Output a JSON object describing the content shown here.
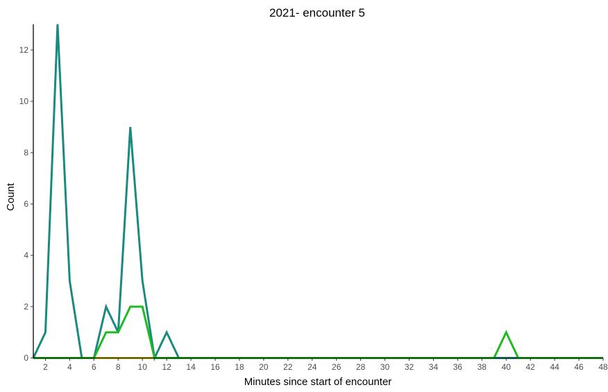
{
  "chart_data": {
    "type": "line",
    "title": "2021- encounter 5",
    "xlabel": "Minutes since start of encounter",
    "ylabel": "Count",
    "xlim": [
      1,
      48
    ],
    "ylim": [
      0,
      13
    ],
    "xticks": [
      2,
      4,
      6,
      8,
      10,
      12,
      14,
      16,
      18,
      20,
      22,
      24,
      26,
      28,
      30,
      32,
      34,
      36,
      38,
      40,
      42,
      44,
      46,
      48
    ],
    "yticks": [
      0,
      2,
      4,
      6,
      8,
      10,
      12
    ],
    "grid": false,
    "legend": "none",
    "x": [
      1,
      2,
      3,
      4,
      5,
      6,
      7,
      8,
      9,
      10,
      11,
      12,
      13,
      14,
      15,
      16,
      17,
      18,
      19,
      20,
      21,
      22,
      23,
      24,
      25,
      26,
      27,
      28,
      29,
      30,
      31,
      32,
      33,
      34,
      35,
      36,
      37,
      38,
      39,
      40,
      41,
      42,
      43,
      44,
      45,
      46,
      47,
      48
    ],
    "series": [
      {
        "color": "#d4c100",
        "values": [
          0,
          0,
          0,
          0,
          0,
          0,
          0,
          0,
          0,
          0,
          0,
          0,
          0,
          0,
          0,
          0,
          0,
          0,
          0,
          0,
          0,
          0,
          0,
          0,
          0,
          0,
          0,
          0,
          0,
          0,
          0,
          0,
          0,
          0,
          0,
          0,
          0,
          0,
          0,
          0,
          0,
          0,
          0,
          0,
          0,
          0,
          0,
          0
        ]
      },
      {
        "color": "#1a8a80",
        "values": [
          0,
          1,
          13,
          3,
          0,
          0,
          2,
          1,
          9,
          3,
          0,
          1,
          0,
          0,
          0,
          0,
          0,
          0,
          0,
          0,
          0,
          0,
          0,
          0,
          0,
          0,
          0,
          0,
          0,
          0,
          0,
          0,
          0,
          0,
          0,
          0,
          0,
          0,
          0,
          0,
          0,
          0,
          0,
          0,
          0,
          0,
          0,
          0
        ]
      },
      {
        "color": "#1fba1f",
        "values": [
          0,
          0,
          0,
          0,
          0,
          0,
          1,
          1,
          2,
          2,
          0,
          0,
          0,
          0,
          0,
          0,
          0,
          0,
          0,
          0,
          0,
          0,
          0,
          0,
          0,
          0,
          0,
          0,
          0,
          0,
          0,
          0,
          0,
          0,
          0,
          0,
          0,
          0,
          0,
          1,
          0,
          0,
          0,
          0,
          0,
          0,
          0,
          0
        ]
      }
    ]
  }
}
